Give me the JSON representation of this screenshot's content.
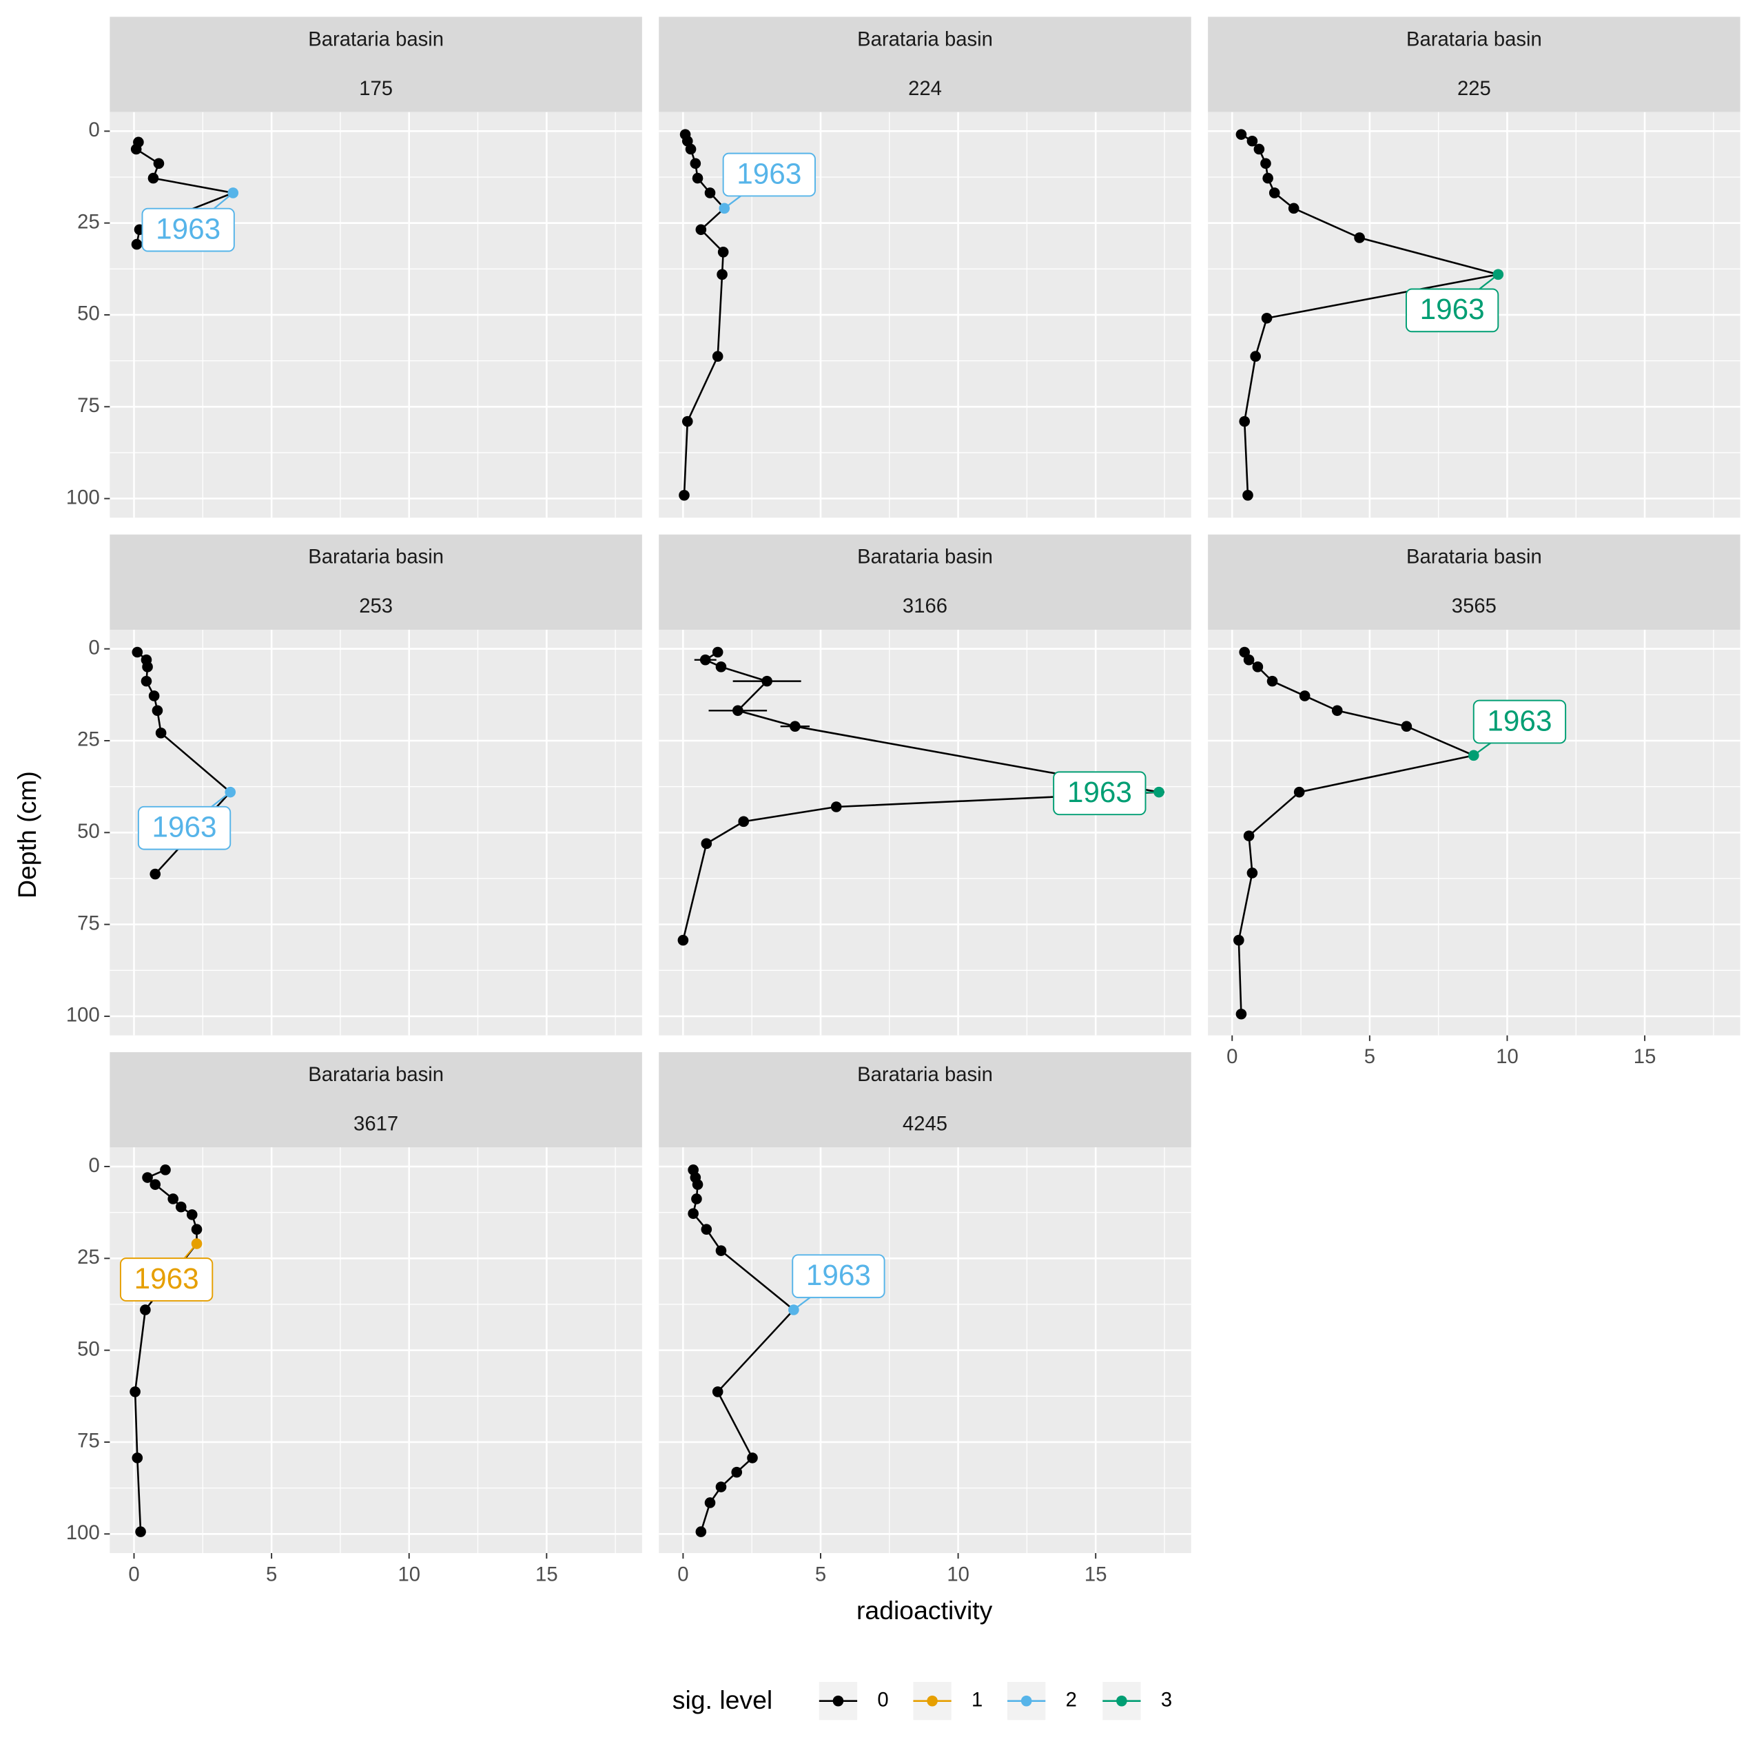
{
  "chart_data": {
    "type": "line",
    "xlabel": "radioactivity",
    "ylabel": "Depth (cm)",
    "xlim": [
      -0.88,
      18.47
    ],
    "ylim": [
      -5.2,
      105.2
    ],
    "xticks": [
      0,
      5,
      10,
      15
    ],
    "yticks": [
      0,
      25,
      50,
      75,
      100
    ],
    "x_minor_grid": [
      2.5,
      7.5,
      12.5,
      17.5
    ],
    "y_minor_grid": [
      12.5,
      37.5,
      62.5,
      87.5
    ],
    "y_reversed": true,
    "grid": true,
    "legend": {
      "title": "sig. level",
      "position": "bottom",
      "levels": [
        0,
        1,
        2,
        3
      ],
      "colors": [
        "#000000",
        "#E69F00",
        "#56B4E9",
        "#009E73"
      ]
    },
    "panels": [
      {
        "strip": [
          "Barataria basin",
          "175"
        ],
        "annotation": "1963",
        "x": [
          0.16,
          0.08,
          0.9,
          0.7,
          3.6,
          0.2,
          0.1
        ],
        "y": [
          3.0,
          4.9,
          8.8,
          12.8,
          16.8,
          26.8,
          30.8
        ],
        "sig": [
          0,
          0,
          0,
          0,
          2,
          0,
          0
        ]
      },
      {
        "strip": [
          "Barataria basin",
          "224"
        ],
        "annotation": "1963",
        "x": [
          0.08,
          0.16,
          0.28,
          0.45,
          0.53,
          0.98,
          1.5,
          0.65,
          1.46,
          1.42,
          1.26,
          0.16,
          0.04
        ],
        "y": [
          0.9,
          2.7,
          4.9,
          8.8,
          12.8,
          16.8,
          21.0,
          26.8,
          32.9,
          39.0,
          61.3,
          79.0,
          99.1
        ],
        "sig": [
          0,
          0,
          0,
          0,
          0,
          0,
          2,
          0,
          0,
          0,
          0,
          0,
          0
        ]
      },
      {
        "strip": [
          "Barataria basin",
          "225"
        ],
        "annotation": "1963",
        "x": [
          0.33,
          0.73,
          0.98,
          1.22,
          1.3,
          1.54,
          2.24,
          4.63,
          9.67,
          1.26,
          0.85,
          0.45,
          0.57
        ],
        "y": [
          0.9,
          2.7,
          4.9,
          8.8,
          12.8,
          16.8,
          21.0,
          29.0,
          39.0,
          50.9,
          61.3,
          79.0,
          99.1
        ],
        "sig": [
          0,
          0,
          0,
          0,
          0,
          0,
          0,
          0,
          3,
          0,
          0,
          0,
          0
        ]
      },
      {
        "strip": [
          "Barataria basin",
          "253"
        ],
        "annotation": "1963",
        "x": [
          0.12,
          0.45,
          0.49,
          0.45,
          0.73,
          0.85,
          0.98,
          3.5,
          0.77
        ],
        "y": [
          0.9,
          3.0,
          4.9,
          8.8,
          12.8,
          16.8,
          22.9,
          39.0,
          61.3
        ],
        "sig": [
          0,
          0,
          0,
          0,
          0,
          0,
          0,
          2,
          0
        ]
      },
      {
        "strip": [
          "Barataria basin",
          "3166"
        ],
        "annotation": "1963",
        "x": [
          1.26,
          0.81,
          1.38,
          3.05,
          1.99,
          4.07,
          17.3,
          5.57,
          2.2,
          0.85,
          0.0
        ],
        "y": [
          0.9,
          3.0,
          4.9,
          8.8,
          16.8,
          21.1,
          39.0,
          43.0,
          47.0,
          53.0,
          79.3
        ],
        "xerr": [
          null,
          0.4,
          null,
          1.24,
          1.06,
          0.53,
          0.2,
          null,
          null,
          null,
          null
        ],
        "sig": [
          0,
          0,
          0,
          0,
          0,
          0,
          3,
          0,
          0,
          0,
          0
        ]
      },
      {
        "strip": [
          "Barataria basin",
          "3565"
        ],
        "annotation": "1963",
        "x": [
          0.45,
          0.61,
          0.93,
          1.46,
          2.64,
          3.82,
          6.34,
          8.78,
          2.44,
          0.61,
          0.73,
          0.24,
          0.33
        ],
        "y": [
          0.9,
          3.0,
          4.9,
          8.8,
          12.8,
          16.8,
          21.1,
          29.0,
          39.0,
          50.9,
          61.0,
          79.3,
          99.4
        ],
        "sig": [
          0,
          0,
          0,
          0,
          0,
          0,
          0,
          3,
          0,
          0,
          0,
          0,
          0
        ]
      },
      {
        "strip": [
          "Barataria basin",
          "3617"
        ],
        "annotation": "1963",
        "x": [
          1.14,
          0.49,
          0.77,
          1.42,
          1.71,
          2.11,
          2.28,
          2.28,
          0.41,
          0.04,
          0.12,
          0.24
        ],
        "y": [
          0.9,
          3.0,
          4.9,
          8.8,
          11.0,
          13.1,
          17.1,
          21.0,
          39.0,
          61.3,
          79.3,
          99.4
        ],
        "sig": [
          0,
          0,
          0,
          0,
          0,
          0,
          0,
          1,
          0,
          0,
          0,
          0
        ]
      },
      {
        "strip": [
          "Barataria basin",
          "4245"
        ],
        "annotation": "1963",
        "x": [
          0.37,
          0.45,
          0.53,
          0.49,
          0.37,
          0.85,
          1.38,
          4.02,
          1.26,
          2.52,
          1.95,
          1.38,
          0.98,
          0.65
        ],
        "y": [
          0.9,
          3.0,
          4.9,
          8.8,
          12.8,
          17.1,
          22.9,
          39.0,
          61.3,
          79.3,
          83.2,
          87.2,
          91.5,
          99.4
        ],
        "sig": [
          0,
          0,
          0,
          0,
          0,
          0,
          0,
          2,
          0,
          0,
          0,
          0,
          0,
          0
        ]
      }
    ]
  }
}
